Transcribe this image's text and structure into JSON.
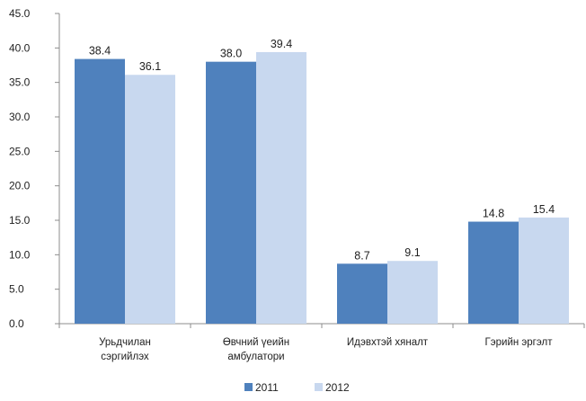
{
  "chart_data": {
    "type": "bar",
    "categories": [
      [
        "Урьдчилан",
        "сэргийлэх"
      ],
      [
        "Өвчний үеийн",
        "амбулатори"
      ],
      [
        "Идэвхтэй хяналт"
      ],
      [
        "Гэрийн эргэлт"
      ]
    ],
    "series": [
      {
        "name": "2011",
        "values": [
          38.4,
          38.0,
          8.7,
          14.8
        ],
        "labels": [
          "38.4",
          "38.0",
          "8.7",
          "14.8"
        ],
        "color": "#4f81bd"
      },
      {
        "name": "2012",
        "values": [
          36.1,
          39.4,
          9.1,
          15.4
        ],
        "labels": [
          "36.1",
          "39.4",
          "9.1",
          "15.4"
        ],
        "color": "#c8d8ef"
      }
    ],
    "ylim": [
      0,
      45
    ],
    "yticks": [
      "0.0",
      "5.0",
      "10.0",
      "15.0",
      "20.0",
      "25.0",
      "30.0",
      "35.0",
      "40.0",
      "45.0"
    ],
    "grid": false,
    "legend_position": "bottom"
  }
}
